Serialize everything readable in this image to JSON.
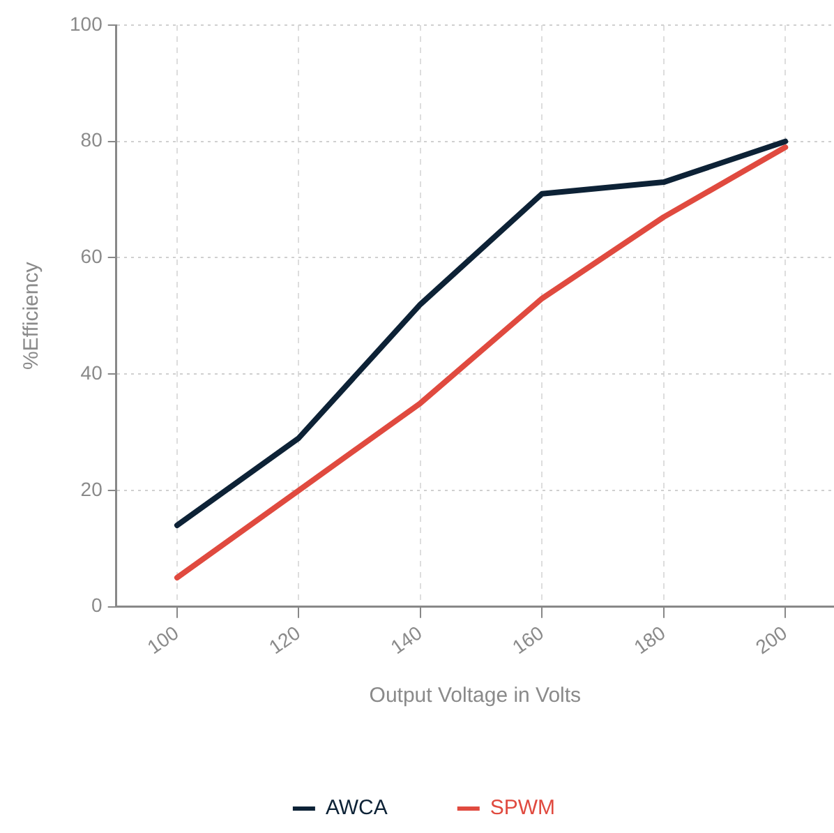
{
  "chart_data": {
    "type": "line",
    "xlabel": "Output Voltage in Volts",
    "ylabel": "%Efficiency",
    "x": [
      100,
      120,
      140,
      160,
      180,
      200
    ],
    "series": [
      {
        "name": "AWCA",
        "color": "#0d2236",
        "values": [
          14,
          29,
          52,
          71,
          73,
          80
        ]
      },
      {
        "name": "SPWM",
        "color": "#e04a3f",
        "values": [
          5,
          20,
          35,
          53,
          67,
          79
        ]
      }
    ],
    "xlim": [
      90,
      208
    ],
    "xticks": [
      100,
      120,
      140,
      160,
      180,
      200
    ],
    "ylim": [
      0,
      100
    ],
    "yticks": [
      0,
      20,
      40,
      60,
      80,
      100
    ],
    "grid": true,
    "legend": "bottom",
    "marker": "none",
    "line_style": "solid"
  }
}
